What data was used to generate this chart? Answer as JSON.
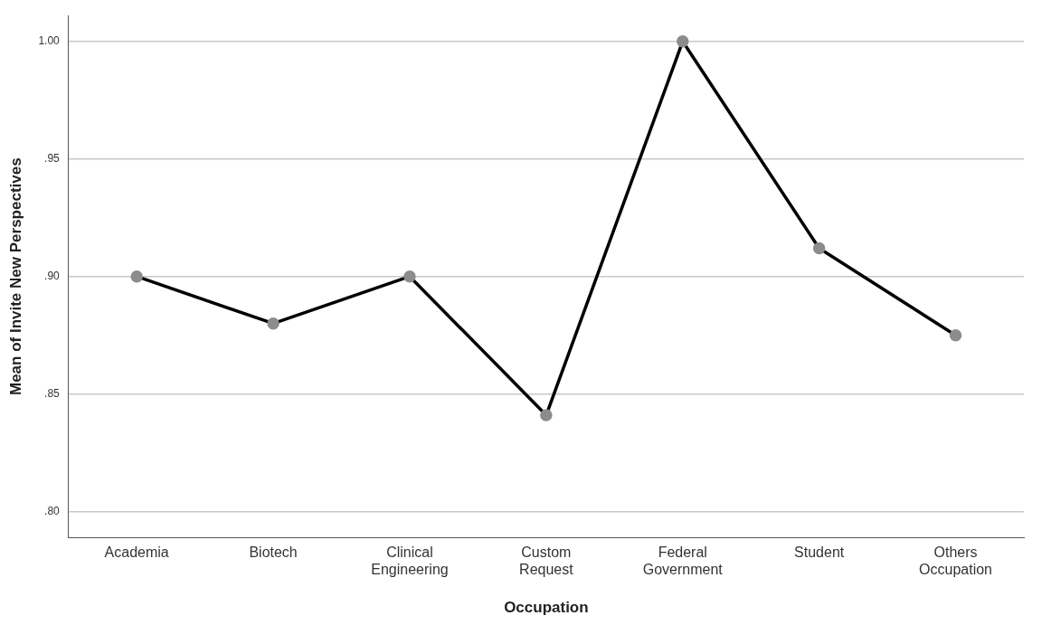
{
  "chart_data": {
    "type": "line",
    "xlabel": "Occupation",
    "ylabel": "Mean of Invite New Perspectives",
    "categories": [
      "Academia",
      "Biotech",
      "Clinical Engineering",
      "Custom Request",
      "Federal Government",
      "Student",
      "Others Occupation"
    ],
    "series": [
      {
        "color": "#000000",
        "values": [
          0.9,
          0.88,
          0.9,
          0.841,
          1.0,
          0.912,
          0.875
        ]
      }
    ],
    "ylim": [
      0.789,
      1.011
    ],
    "yticks": [
      {
        "value": 0.8,
        "label": ".80"
      },
      {
        "value": 0.85,
        "label": ".85"
      },
      {
        "value": 0.9,
        "label": ".90"
      },
      {
        "value": 0.95,
        "label": ".95"
      },
      {
        "value": 1.0,
        "label": "1.00"
      }
    ],
    "grid": "y",
    "marker": "circle",
    "line_style": "solid",
    "legend": false
  }
}
